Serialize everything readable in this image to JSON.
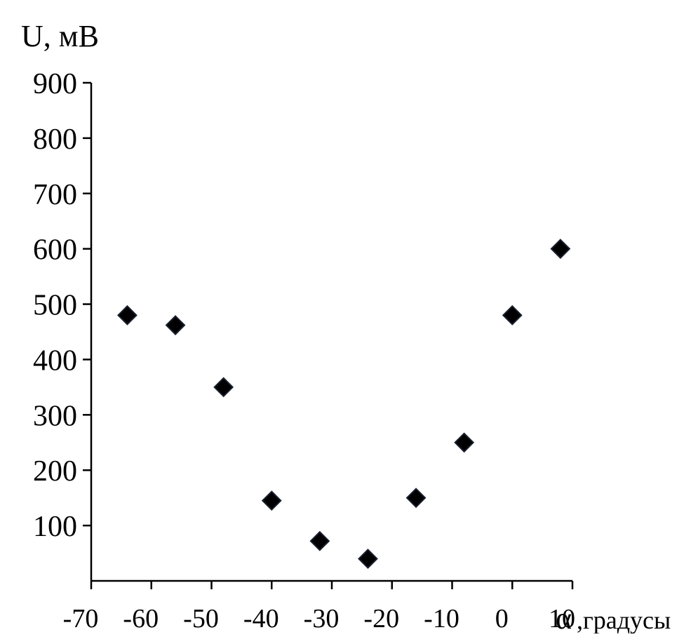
{
  "chart_data": {
    "type": "scatter",
    "title": "",
    "ylabel": "U, мВ",
    "xlabel": "α,градусы",
    "xlim": [
      -70,
      10
    ],
    "ylim": [
      0,
      900
    ],
    "xticks": [
      -70,
      -60,
      -50,
      -40,
      -30,
      -20,
      -10,
      0,
      10
    ],
    "yticks": [
      100,
      200,
      300,
      400,
      500,
      600,
      700,
      800,
      900
    ],
    "grid": false,
    "marker": "diamond",
    "marker_color": "#000000",
    "series": [
      {
        "x": [
          -64,
          -56,
          -48,
          -40,
          -32,
          -24,
          -16,
          -8,
          0,
          8
        ],
        "y": [
          480,
          462,
          350,
          145,
          72,
          40,
          150,
          250,
          480,
          600
        ]
      }
    ]
  }
}
